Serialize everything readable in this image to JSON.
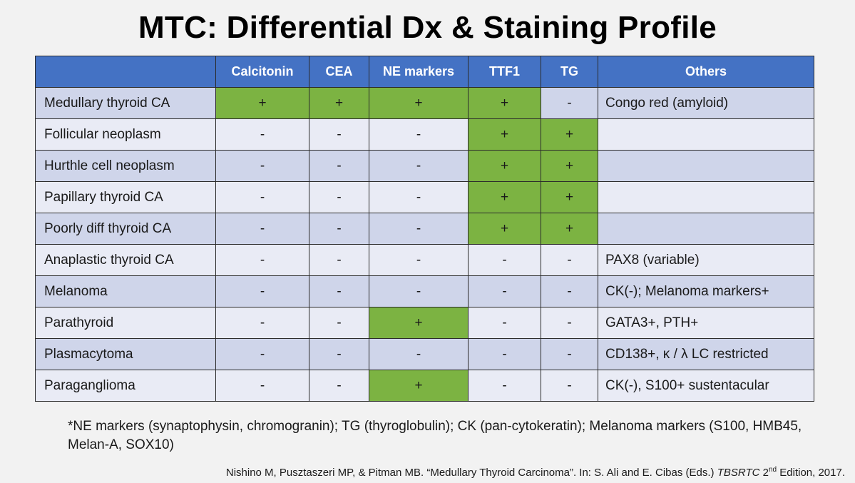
{
  "title": "MTC: Differential Dx & Staining Profile",
  "columns": [
    "",
    "Calcitonin",
    "CEA",
    "NE markers",
    "TTF1",
    "TG",
    "Others"
  ],
  "rows": [
    {
      "name": "Medullary thyroid CA",
      "calcitonin": "+",
      "cea": "+",
      "ne": "+",
      "ttf1": "+",
      "tg": "-",
      "others": "Congo red (amyloid)"
    },
    {
      "name": "Follicular neoplasm",
      "calcitonin": "-",
      "cea": "-",
      "ne": "-",
      "ttf1": "+",
      "tg": "+",
      "others": ""
    },
    {
      "name": "Hurthle cell neoplasm",
      "calcitonin": "-",
      "cea": "-",
      "ne": "-",
      "ttf1": "+",
      "tg": "+",
      "others": ""
    },
    {
      "name": "Papillary thyroid CA",
      "calcitonin": "-",
      "cea": "-",
      "ne": "-",
      "ttf1": "+",
      "tg": "+",
      "others": ""
    },
    {
      "name": "Poorly diff thyroid CA",
      "calcitonin": "-",
      "cea": "-",
      "ne": "-",
      "ttf1": "+",
      "tg": "+",
      "others": ""
    },
    {
      "name": "Anaplastic thyroid CA",
      "calcitonin": "-",
      "cea": "-",
      "ne": "-",
      "ttf1": "-",
      "tg": "-",
      "others": "PAX8 (variable)"
    },
    {
      "name": "Melanoma",
      "calcitonin": "-",
      "cea": "-",
      "ne": "-",
      "ttf1": "-",
      "tg": "-",
      "others": "CK(-); Melanoma markers+"
    },
    {
      "name": "Parathyroid",
      "calcitonin": "-",
      "cea": "-",
      "ne": "+",
      "ttf1": "-",
      "tg": "-",
      "others": "GATA3+, PTH+"
    },
    {
      "name": "Plasmacytoma",
      "calcitonin": "-",
      "cea": "-",
      "ne": "-",
      "ttf1": "-",
      "tg": "-",
      "others": "CD138+, κ / λ LC restricted"
    },
    {
      "name": "Paraganglioma",
      "calcitonin": "-",
      "cea": "-",
      "ne": "+",
      "ttf1": "-",
      "tg": "-",
      "others": "CK(-), S100+ sustentacular"
    }
  ],
  "footnote": "*NE markers (synaptophysin, chromogranin); TG (thyroglobulin); CK (pan-cytokeratin); Melanoma markers (S100, HMB45, Melan-A, SOX10)",
  "citation": {
    "prefix": "Nishino M, Pusztaszeri MP, & Pitman MB. “Medullary Thyroid Carcinoma”. In: S. Ali and E. Cibas (Eds.) ",
    "book": "TBSRTC",
    "edition_num": " 2",
    "edition_sup": "nd",
    "suffix": " Edition, 2017."
  },
  "colors": {
    "header_bg": "#4472c4",
    "positive_bg": "#7cb342",
    "row_dark": "#cfd5ea",
    "row_light": "#e9ebf5"
  }
}
